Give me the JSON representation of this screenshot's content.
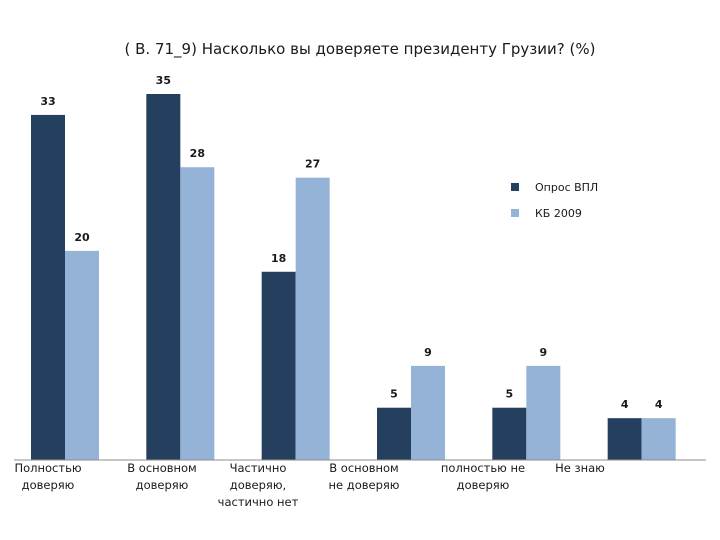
{
  "chart_data": {
    "type": "bar",
    "title": "( В. 71_9)  Насколько вы доверяете президенту Грузии? (%)",
    "categories": [
      [
        "Полностью",
        "доверяю"
      ],
      [
        "В основном",
        "доверяю"
      ],
      [
        "Частично",
        "доверяю,",
        "частично нет"
      ],
      [
        "В основном",
        "не доверяю"
      ],
      [
        "полностью не",
        "доверяю"
      ],
      [
        "Не знаю"
      ]
    ],
    "series": [
      {
        "name": "Опрос ВПЛ",
        "color": "#253f5f",
        "values": [
          33,
          35,
          18,
          5,
          5,
          4
        ]
      },
      {
        "name": "КБ 2009",
        "color": "#95b3d7",
        "values": [
          20,
          28,
          27,
          9,
          9,
          4
        ]
      }
    ],
    "ylim": [
      0,
      35
    ],
    "grid": false,
    "legend": "right",
    "data_labels": true,
    "xlabel": "",
    "ylabel": ""
  }
}
